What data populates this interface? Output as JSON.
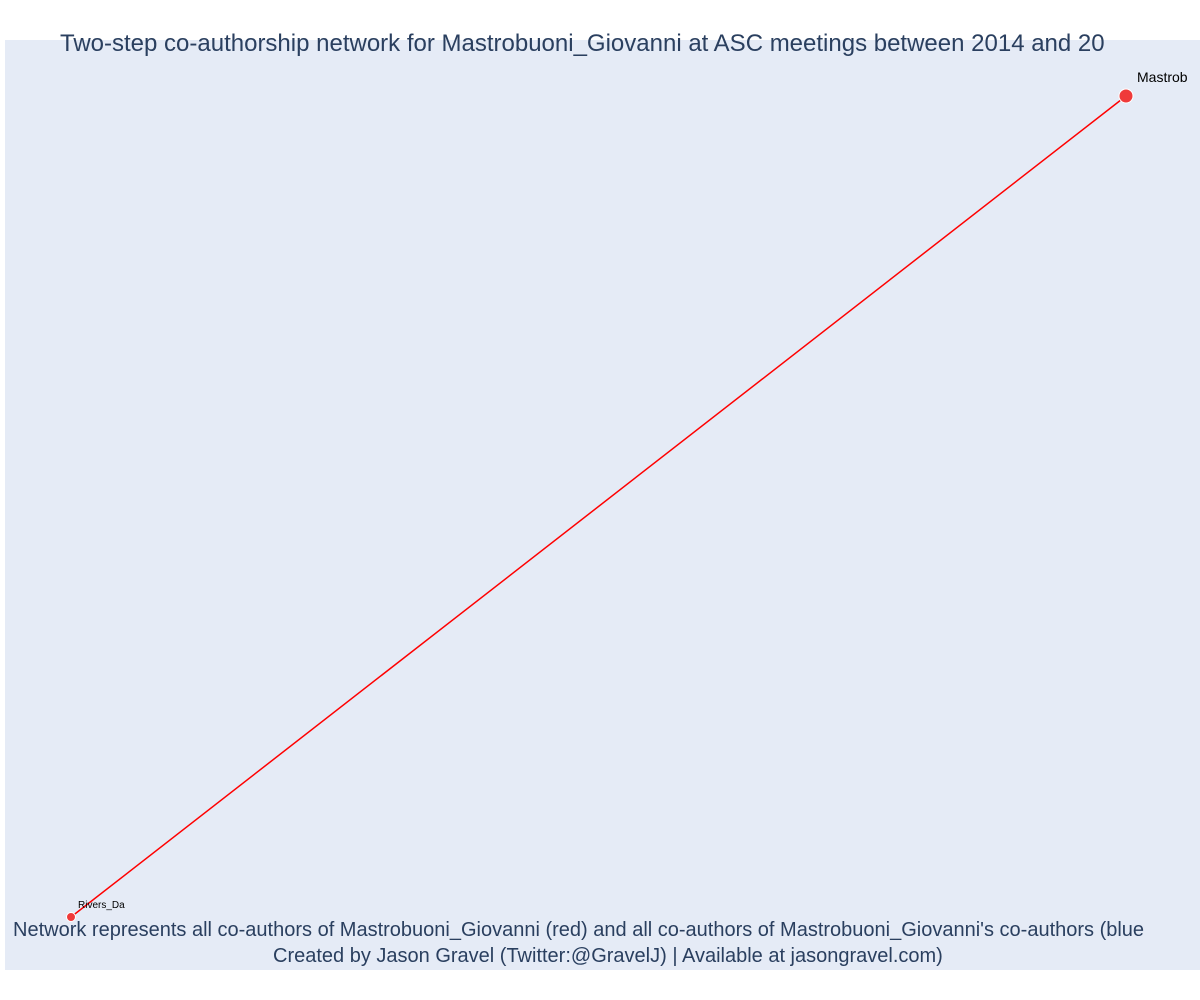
{
  "title": "Two-step co-authorship network for Mastrobuoni_Giovanni at ASC meetings between 2014 and 20",
  "caption": {
    "line1": "Network represents all co-authors of Mastrobuoni_Giovanni (red) and all co-authors of Mastrobuoni_Giovanni's co-authors (blue",
    "line2": "Created by Jason Gravel (Twitter:@GravelJ) | Available at jasongravel.com)"
  },
  "colors": {
    "plot_background": "#e5ebf6",
    "title_text": "#2a3f5f",
    "edge": "#ff0000",
    "node_red": "#ef3a3a"
  },
  "network": {
    "nodes": [
      {
        "id": "mastrobuoni",
        "label": "Mastrob",
        "color": "red",
        "size": "large"
      },
      {
        "id": "rivers",
        "label": "Rivers_Da",
        "color": "red",
        "size": "small"
      }
    ],
    "edges": [
      {
        "source": "mastrobuoni",
        "target": "rivers"
      }
    ]
  }
}
